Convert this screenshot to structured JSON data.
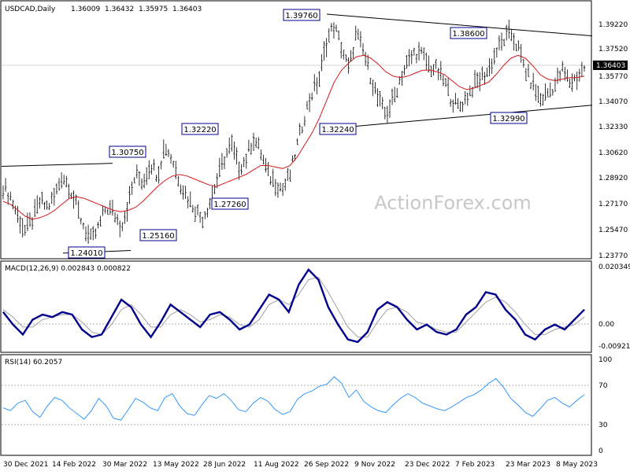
{
  "chart_data": [
    {
      "type": "candlestick",
      "title": "USDCAD,Daily",
      "ohlc": {
        "open": "1.36009",
        "high": "1.36432",
        "low": "1.35975",
        "close": "1.36403"
      },
      "last_price": "1.36403",
      "watermark": "ActionForex.com",
      "y_ticks": [
        "1.39220",
        "1.37520",
        "1.35770",
        "1.34070",
        "1.32330",
        "1.30620",
        "1.28920",
        "1.27170",
        "1.25470",
        "1.23770"
      ],
      "ylim": [
        1.234,
        1.405
      ],
      "x_ticks": [
        "30 Dec 2021",
        "14 Feb 2022",
        "30 Mar 2022",
        "13 May 2022",
        "28 Jun 2022",
        "11 Aug 2022",
        "26 Sep 2022",
        "9 Nov 2022",
        "23 Dec 2022",
        "7 Feb 2023",
        "23 Mar 2023",
        "8 May 2023"
      ],
      "swing_labels": [
        {
          "text": "1.39760",
          "date": "Oct 2022",
          "value": 1.3976
        },
        {
          "text": "1.38600",
          "date": "Mar 2023",
          "value": 1.386
        },
        {
          "text": "1.32220",
          "date": "Jul 2022",
          "value": 1.3222
        },
        {
          "text": "1.32240",
          "date": "Nov 2022",
          "value": 1.3224
        },
        {
          "text": "1.32990",
          "date": "Apr 2023",
          "value": 1.3299
        },
        {
          "text": "1.30750",
          "date": "Apr 2022",
          "value": 1.3075
        },
        {
          "text": "1.27260",
          "date": "Jul 2022",
          "value": 1.2726
        },
        {
          "text": "1.25160",
          "date": "May 2022",
          "value": 1.2516
        },
        {
          "text": "1.24010",
          "date": "Apr 2022",
          "value": 1.2401
        }
      ],
      "series": [
        {
          "kind": "price",
          "points": [
            1.282,
            1.275,
            1.262,
            1.252,
            1.26,
            1.272,
            1.268,
            1.275,
            1.29,
            1.282,
            1.268,
            1.255,
            1.245,
            1.255,
            1.268,
            1.265,
            1.255,
            1.27,
            1.29,
            1.285,
            1.298,
            1.29,
            1.31,
            1.3,
            1.285,
            1.275,
            1.268,
            1.26,
            1.27,
            1.285,
            1.3,
            1.31,
            1.295,
            1.3,
            1.315,
            1.305,
            1.29,
            1.285,
            1.28,
            1.29,
            1.31,
            1.33,
            1.345,
            1.355,
            1.38,
            1.39,
            1.375,
            1.36,
            1.385,
            1.372,
            1.355,
            1.34,
            1.33,
            1.34,
            1.355,
            1.365,
            1.372,
            1.37,
            1.362,
            1.36,
            1.352,
            1.34,
            1.335,
            1.342,
            1.35,
            1.355,
            1.36,
            1.372,
            1.38,
            1.385,
            1.375,
            1.36,
            1.35,
            1.34,
            1.345,
            1.35,
            1.36,
            1.352,
            1.355,
            1.362
          ]
        },
        {
          "kind": "moving-average",
          "points": [
            1.272,
            1.27,
            1.266,
            1.262,
            1.26,
            1.261,
            1.263,
            1.266,
            1.27,
            1.274,
            1.275,
            1.274,
            1.272,
            1.27,
            1.268,
            1.266,
            1.265,
            1.266,
            1.268,
            1.272,
            1.277,
            1.282,
            1.286,
            1.289,
            1.29,
            1.289,
            1.287,
            1.285,
            1.283,
            1.282,
            1.284,
            1.286,
            1.288,
            1.29,
            1.293,
            1.296,
            1.296,
            1.295,
            1.294,
            1.296,
            1.302,
            1.31,
            1.318,
            1.328,
            1.34,
            1.352,
            1.36,
            1.365,
            1.369,
            1.37,
            1.368,
            1.364,
            1.359,
            1.356,
            1.355,
            1.356,
            1.358,
            1.36,
            1.36,
            1.359,
            1.357,
            1.353,
            1.349,
            1.347,
            1.348,
            1.35,
            1.352,
            1.357,
            1.363,
            1.368,
            1.37,
            1.368,
            1.363,
            1.357,
            1.354,
            1.353,
            1.354,
            1.355,
            1.355,
            1.356
          ]
        }
      ],
      "trendlines": [
        {
          "from": {
            "date": "Sep 2022",
            "value": 1.3976
          },
          "to": {
            "date": "May 2023",
            "value": 1.383
          }
        },
        {
          "from": {
            "date": "Nov 2022",
            "value": 1.3224
          },
          "to": {
            "date": "May 2023",
            "value": 1.3365
          }
        },
        {
          "from": {
            "date": "Dec 2021",
            "value": 1.2955
          },
          "to": {
            "date": "Apr 2022",
            "value": 1.2975
          }
        },
        {
          "from": {
            "date": "Mar 2022",
            "value": 1.2372
          },
          "to": {
            "date": "Apr 2022",
            "value": 1.239
          }
        }
      ]
    },
    {
      "type": "line",
      "title": "MACD(12,26,9) 0.002843 0.000822",
      "y_ticks": [
        "0.020349",
        "0.00",
        "-0.009215"
      ],
      "ylim": [
        -0.0125,
        0.0225
      ],
      "series": [
        {
          "kind": "macd",
          "points": [
            0.003,
            -0.002,
            -0.006,
            0.0,
            0.002,
            0.001,
            0.003,
            0.002,
            -0.004,
            -0.007,
            -0.006,
            0.001,
            0.008,
            0.005,
            -0.002,
            -0.007,
            -0.001,
            0.006,
            0.003,
            0.0,
            -0.003,
            0.002,
            0.003,
            0.0,
            -0.004,
            -0.002,
            0.004,
            0.01,
            0.008,
            0.003,
            0.014,
            0.02,
            0.016,
            0.005,
            -0.002,
            -0.008,
            -0.009,
            -0.005,
            0.004,
            0.007,
            0.005,
            0.0,
            -0.004,
            -0.002,
            -0.005,
            -0.006,
            -0.004,
            0.002,
            0.005,
            0.011,
            0.01,
            0.004,
            0.0,
            -0.006,
            -0.008,
            -0.004,
            -0.002,
            -0.004,
            0.0,
            0.004
          ]
        },
        {
          "kind": "signal",
          "points": [
            0.004,
            0.001,
            -0.003,
            -0.003,
            0.0,
            0.001,
            0.002,
            0.002,
            -0.001,
            -0.005,
            -0.006,
            -0.002,
            0.004,
            0.006,
            0.002,
            -0.003,
            -0.003,
            0.002,
            0.004,
            0.002,
            -0.001,
            0.0,
            0.002,
            0.001,
            -0.002,
            -0.003,
            0.0,
            0.006,
            0.008,
            0.006,
            0.01,
            0.016,
            0.017,
            0.011,
            0.004,
            -0.003,
            -0.007,
            -0.007,
            -0.001,
            0.004,
            0.005,
            0.003,
            -0.001,
            -0.002,
            -0.004,
            -0.005,
            -0.005,
            -0.001,
            0.003,
            0.007,
            0.009,
            0.007,
            0.003,
            -0.002,
            -0.006,
            -0.006,
            -0.004,
            -0.003,
            -0.002,
            0.001
          ]
        }
      ]
    },
    {
      "type": "line",
      "title": "RSI(14) 60.2057",
      "y_ticks": [
        "100",
        "70",
        "30",
        "0"
      ],
      "ylim": [
        0,
        100
      ],
      "series": [
        {
          "kind": "rsi",
          "points": [
            47,
            44,
            52,
            55,
            43,
            37,
            49,
            58,
            55,
            47,
            41,
            35,
            44,
            57,
            49,
            36,
            34,
            45,
            57,
            53,
            47,
            44,
            58,
            62,
            49,
            41,
            39,
            50,
            60,
            57,
            62,
            55,
            45,
            43,
            52,
            58,
            54,
            45,
            40,
            43,
            56,
            62,
            65,
            70,
            72,
            80,
            73,
            58,
            66,
            54,
            48,
            44,
            42,
            50,
            57,
            62,
            58,
            52,
            49,
            46,
            44,
            48,
            53,
            58,
            61,
            66,
            73,
            78,
            69,
            57,
            50,
            42,
            38,
            46,
            55,
            58,
            52,
            48,
            55,
            61
          ]
        }
      ]
    }
  ]
}
